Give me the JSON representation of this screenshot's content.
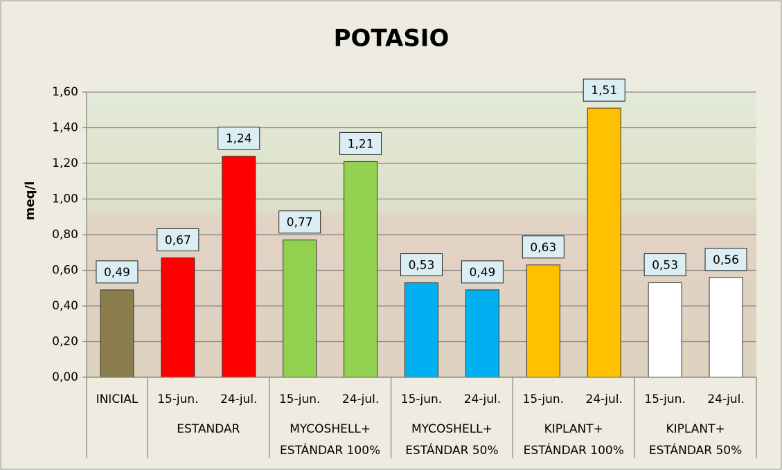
{
  "chart_data": {
    "type": "bar",
    "title": "POTASIO",
    "y_label": "meq/l",
    "groups": [
      {
        "categories": [
          "INICIAL"
        ],
        "values": [
          0.49
        ],
        "value_labels": [
          "0,49"
        ],
        "color": "#8b7d4b"
      },
      {
        "name_lines": [
          "ESTANDAR"
        ],
        "categories": [
          "15-jun.",
          "24-jul."
        ],
        "values": [
          0.67,
          1.24
        ],
        "value_labels": [
          "0,67",
          "1,24"
        ],
        "color": "#ff0000"
      },
      {
        "name_lines": [
          "MYCOSHELL+",
          "ESTÁNDAR 100%"
        ],
        "categories": [
          "15-jun.",
          "24-jul."
        ],
        "values": [
          0.77,
          1.21
        ],
        "value_labels": [
          "0,77",
          "1,21"
        ],
        "color": "#92d050"
      },
      {
        "name_lines": [
          "MYCOSHELL+",
          "ESTÁNDAR 50%"
        ],
        "categories": [
          "15-jun.",
          "24-jul."
        ],
        "values": [
          0.53,
          0.49
        ],
        "value_labels": [
          "0,53",
          "0,49"
        ],
        "color": "#00b0f0"
      },
      {
        "name_lines": [
          "KIPLANT+",
          "ESTÁNDAR 100%"
        ],
        "categories": [
          "15-jun.",
          "24-jul."
        ],
        "values": [
          0.63,
          1.51
        ],
        "value_labels": [
          "0,63",
          "1,51"
        ],
        "color": "#ffc000"
      },
      {
        "name_lines": [
          "KIPLANT+",
          "ESTÁNDAR 50%"
        ],
        "categories": [
          "15-jun.",
          "24-jul."
        ],
        "values": [
          0.53,
          0.56
        ],
        "value_labels": [
          "0,53",
          "0,56"
        ],
        "color": "#ffffff"
      }
    ],
    "ylim": [
      0,
      1.6
    ],
    "yticks": [
      {
        "value": 0,
        "label": "0,00"
      },
      {
        "value": 0.2,
        "label": "0,20"
      },
      {
        "value": 0.4,
        "label": "0,40"
      },
      {
        "value": 0.6,
        "label": "0,60"
      },
      {
        "value": 0.8,
        "label": "0,80"
      },
      {
        "value": 1.0,
        "label": "1,00"
      },
      {
        "value": 1.2,
        "label": "1,20"
      },
      {
        "value": 1.4,
        "label": "1,40"
      },
      {
        "value": 1.6,
        "label": "1,60"
      }
    ],
    "grid": true
  }
}
